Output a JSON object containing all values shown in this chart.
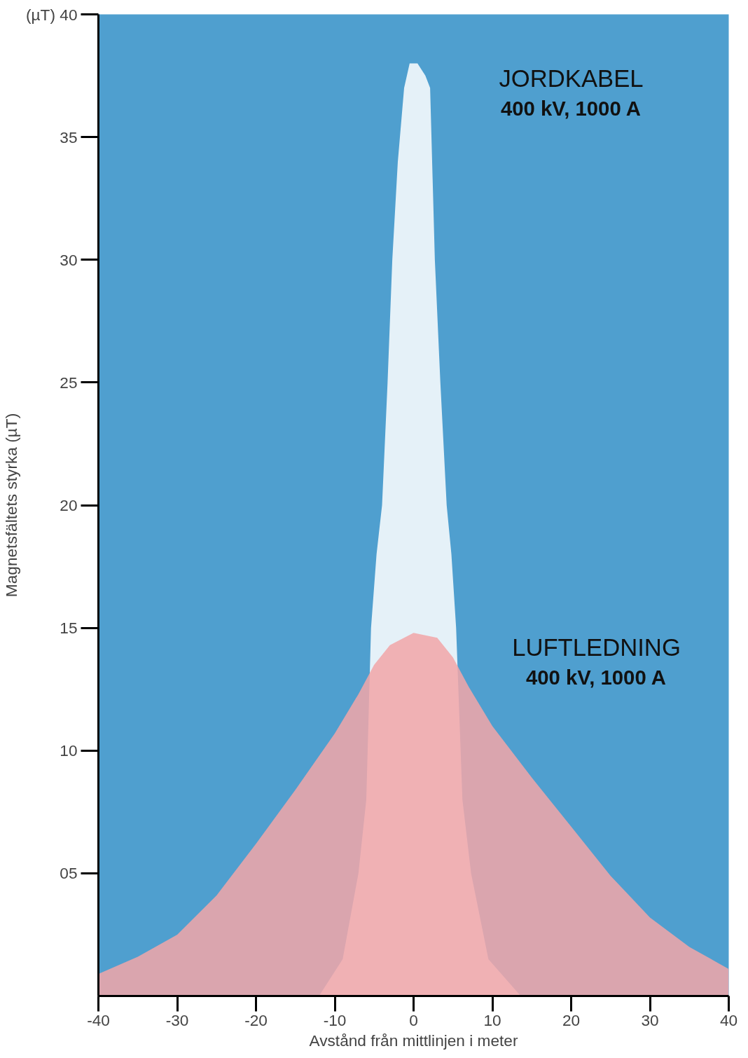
{
  "chart_data": {
    "type": "area",
    "xlabel": "Avstånd från mittlinjen i meter",
    "ylabel": "Magnetsfältets styrka (µT)",
    "xlim": [
      -40,
      40
    ],
    "ylim": [
      0,
      40
    ],
    "xticks": [
      -40,
      -30,
      -20,
      -10,
      0,
      10,
      20,
      30,
      40
    ],
    "yticks": [
      {
        "value": 5,
        "label": "05"
      },
      10,
      15,
      20,
      25,
      30,
      35,
      {
        "value": 40,
        "label": "(µT) 40"
      }
    ],
    "grid": false,
    "series": [
      {
        "name": "JORDKABEL",
        "color": "#ffffff",
        "x": [
          -12,
          -9,
          -7,
          -6,
          -5.4,
          -4.7,
          -4,
          -3.3,
          -2.7,
          -2,
          -1.2,
          -0.5,
          0.5,
          1.5,
          2.1,
          2.7,
          3.4,
          4.2,
          4.8,
          5.4,
          6.2,
          7.3,
          9.5,
          13.6
        ],
        "values": [
          0,
          1.5,
          5,
          8,
          15,
          18,
          20,
          25,
          30,
          34,
          37,
          38,
          38,
          37.5,
          37,
          30,
          25,
          20,
          18,
          15,
          8,
          5,
          1.5,
          0
        ]
      },
      {
        "name": "LUFTLEDNING",
        "color": "#f2a6a8",
        "x": [
          -40,
          -35,
          -30,
          -25,
          -20,
          -15,
          -10,
          -7,
          -5,
          -3,
          0,
          3,
          5,
          7,
          10,
          15,
          20,
          25,
          30,
          35,
          40
        ],
        "values": [
          0.9,
          1.6,
          2.5,
          4.1,
          6.2,
          8.4,
          10.7,
          12.3,
          13.5,
          14.3,
          14.8,
          14.6,
          13.8,
          12.6,
          11,
          8.9,
          6.9,
          4.9,
          3.2,
          2,
          1.1
        ]
      }
    ],
    "annotations": [
      "400 kV, 1000 A",
      "400 kV, 1000 A"
    ]
  }
}
